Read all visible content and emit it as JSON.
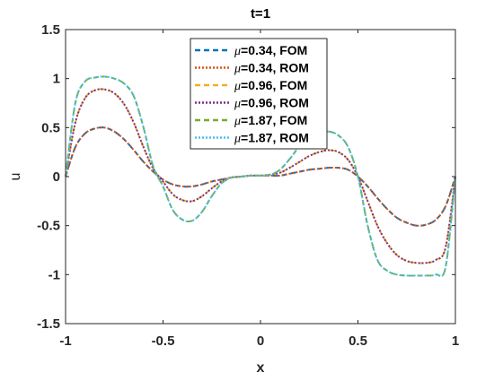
{
  "chart_data": {
    "type": "line",
    "title": "t=1",
    "xlabel": "x",
    "ylabel": "u",
    "xlim": [
      -1,
      1
    ],
    "ylim": [
      -1.5,
      1.5
    ],
    "xticks": [
      -1,
      -0.5,
      0,
      0.5,
      1
    ],
    "xtick_labels": [
      "-1",
      "-0.5",
      "0",
      "0.5",
      "1"
    ],
    "yticks": [
      -1.5,
      -1,
      -0.5,
      0,
      0.5,
      1,
      1.5
    ],
    "ytick_labels": [
      "-1.5",
      "-1",
      "-0.5",
      "0",
      "0.5",
      "1",
      "1.5"
    ],
    "grid": false,
    "legend_position": "top-center",
    "series": [
      {
        "name": "μ=0.34, FOM",
        "legend_mu": "μ",
        "legend_rest": "=0.34, FOM",
        "color": "#0072BD",
        "dash": "6,4",
        "x": [
          -1,
          -0.95,
          -0.9,
          -0.85,
          -0.8,
          -0.75,
          -0.7,
          -0.65,
          -0.6,
          -0.55,
          -0.5,
          -0.45,
          -0.4,
          -0.35,
          -0.3,
          -0.25,
          -0.2,
          -0.15,
          -0.1,
          -0.05,
          0,
          0.05,
          0.1,
          0.15,
          0.2,
          0.25,
          0.3,
          0.35,
          0.4,
          0.45,
          0.5,
          0.55,
          0.6,
          0.65,
          0.7,
          0.75,
          0.8,
          0.85,
          0.9,
          0.95,
          1
        ],
        "y": [
          0,
          0.3,
          0.44,
          0.49,
          0.5,
          0.46,
          0.38,
          0.27,
          0.15,
          0.05,
          -0.03,
          -0.08,
          -0.1,
          -0.1,
          -0.08,
          -0.05,
          -0.03,
          -0.01,
          0,
          0.01,
          0.01,
          0.01,
          0.01,
          0.03,
          0.05,
          0.07,
          0.08,
          0.09,
          0.09,
          0.07,
          0,
          -0.1,
          -0.22,
          -0.33,
          -0.42,
          -0.47,
          -0.5,
          -0.49,
          -0.44,
          -0.3,
          0
        ]
      },
      {
        "name": "μ=0.34, ROM",
        "legend_mu": "μ",
        "legend_rest": "=0.34, ROM",
        "color": "#D95319",
        "dash": "2,2",
        "x": [
          -1,
          -0.95,
          -0.9,
          -0.85,
          -0.8,
          -0.75,
          -0.7,
          -0.65,
          -0.6,
          -0.55,
          -0.5,
          -0.45,
          -0.4,
          -0.35,
          -0.3,
          -0.25,
          -0.2,
          -0.15,
          -0.1,
          -0.05,
          0,
          0.05,
          0.1,
          0.15,
          0.2,
          0.25,
          0.3,
          0.35,
          0.4,
          0.45,
          0.5,
          0.55,
          0.6,
          0.65,
          0.7,
          0.75,
          0.8,
          0.85,
          0.9,
          0.95,
          1
        ],
        "y": [
          0,
          0.3,
          0.44,
          0.49,
          0.5,
          0.46,
          0.38,
          0.27,
          0.15,
          0.05,
          -0.03,
          -0.08,
          -0.1,
          -0.1,
          -0.08,
          -0.05,
          -0.03,
          -0.01,
          0,
          0.01,
          0.01,
          0.01,
          0.01,
          0.03,
          0.05,
          0.07,
          0.08,
          0.09,
          0.09,
          0.07,
          0,
          -0.1,
          -0.22,
          -0.33,
          -0.42,
          -0.47,
          -0.5,
          -0.49,
          -0.44,
          -0.3,
          0
        ]
      },
      {
        "name": "μ=0.96, FOM",
        "legend_mu": "μ",
        "legend_rest": "=0.96, FOM",
        "color": "#EDB120",
        "dash": "6,4",
        "x": [
          -1,
          -0.95,
          -0.9,
          -0.85,
          -0.8,
          -0.75,
          -0.7,
          -0.65,
          -0.6,
          -0.55,
          -0.5,
          -0.45,
          -0.4,
          -0.35,
          -0.3,
          -0.25,
          -0.2,
          -0.15,
          -0.1,
          -0.05,
          0,
          0.05,
          0.1,
          0.15,
          0.2,
          0.25,
          0.3,
          0.35,
          0.4,
          0.45,
          0.5,
          0.55,
          0.6,
          0.65,
          0.7,
          0.75,
          0.8,
          0.85,
          0.9,
          0.95,
          1
        ],
        "y": [
          0,
          0.55,
          0.8,
          0.88,
          0.89,
          0.85,
          0.74,
          0.55,
          0.3,
          0.08,
          -0.05,
          -0.18,
          -0.24,
          -0.25,
          -0.2,
          -0.12,
          -0.05,
          -0.01,
          0,
          0.01,
          0.01,
          0.02,
          0.04,
          0.09,
          0.15,
          0.21,
          0.25,
          0.27,
          0.25,
          0.17,
          0,
          -0.25,
          -0.5,
          -0.68,
          -0.8,
          -0.86,
          -0.88,
          -0.88,
          -0.85,
          -0.72,
          0
        ]
      },
      {
        "name": "μ=0.96, ROM",
        "legend_mu": "μ",
        "legend_rest": "=0.96, ROM",
        "color": "#7E2F8E",
        "dash": "2,2",
        "x": [
          -1,
          -0.95,
          -0.9,
          -0.85,
          -0.8,
          -0.75,
          -0.7,
          -0.65,
          -0.6,
          -0.55,
          -0.5,
          -0.45,
          -0.4,
          -0.35,
          -0.3,
          -0.25,
          -0.2,
          -0.15,
          -0.1,
          -0.05,
          0,
          0.05,
          0.1,
          0.15,
          0.2,
          0.25,
          0.3,
          0.35,
          0.4,
          0.45,
          0.5,
          0.55,
          0.6,
          0.65,
          0.7,
          0.75,
          0.8,
          0.85,
          0.9,
          0.95,
          1
        ],
        "y": [
          0,
          0.55,
          0.8,
          0.88,
          0.89,
          0.85,
          0.74,
          0.55,
          0.3,
          0.08,
          -0.05,
          -0.18,
          -0.24,
          -0.25,
          -0.2,
          -0.12,
          -0.05,
          -0.01,
          0,
          0.01,
          0.01,
          0.02,
          0.04,
          0.09,
          0.15,
          0.21,
          0.25,
          0.27,
          0.25,
          0.17,
          0,
          -0.25,
          -0.5,
          -0.68,
          -0.8,
          -0.86,
          -0.88,
          -0.88,
          -0.85,
          -0.72,
          0
        ]
      },
      {
        "name": "μ=1.87, FOM",
        "legend_mu": "μ",
        "legend_rest": "=1.87, FOM",
        "color": "#77AC30",
        "dash": "6,4",
        "x": [
          -1,
          -0.95,
          -0.9,
          -0.85,
          -0.8,
          -0.75,
          -0.7,
          -0.65,
          -0.6,
          -0.55,
          -0.5,
          -0.45,
          -0.4,
          -0.35,
          -0.3,
          -0.25,
          -0.2,
          -0.15,
          -0.1,
          -0.05,
          0,
          0.05,
          0.1,
          0.15,
          0.2,
          0.25,
          0.3,
          0.35,
          0.4,
          0.45,
          0.5,
          0.55,
          0.6,
          0.65,
          0.7,
          0.75,
          0.8,
          0.85,
          0.9,
          0.95,
          1
        ],
        "y": [
          0,
          0.75,
          0.97,
          1.01,
          1.02,
          1.0,
          0.95,
          0.82,
          0.5,
          0.1,
          -0.1,
          -0.34,
          -0.44,
          -0.45,
          -0.36,
          -0.2,
          -0.07,
          -0.01,
          0,
          0.01,
          0.01,
          0.02,
          0.07,
          0.18,
          0.31,
          0.41,
          0.45,
          0.46,
          0.42,
          0.3,
          0,
          -0.5,
          -0.85,
          -0.96,
          -1.0,
          -1.01,
          -1.01,
          -1.01,
          -1.0,
          -0.92,
          0
        ]
      },
      {
        "name": "μ=1.87, ROM",
        "legend_mu": "μ",
        "legend_rest": "=1.87, ROM",
        "color": "#4DBEEE",
        "dash": "2,2",
        "x": [
          -1,
          -0.95,
          -0.9,
          -0.85,
          -0.8,
          -0.75,
          -0.7,
          -0.65,
          -0.6,
          -0.55,
          -0.5,
          -0.45,
          -0.4,
          -0.35,
          -0.3,
          -0.25,
          -0.2,
          -0.15,
          -0.1,
          -0.05,
          0,
          0.05,
          0.1,
          0.15,
          0.2,
          0.25,
          0.3,
          0.35,
          0.4,
          0.45,
          0.5,
          0.55,
          0.6,
          0.65,
          0.7,
          0.75,
          0.8,
          0.85,
          0.9,
          0.95,
          1
        ],
        "y": [
          0,
          0.75,
          0.97,
          1.01,
          1.02,
          1.0,
          0.95,
          0.82,
          0.5,
          0.1,
          -0.1,
          -0.34,
          -0.44,
          -0.45,
          -0.36,
          -0.2,
          -0.07,
          -0.01,
          0,
          0.01,
          0.01,
          0.02,
          0.07,
          0.18,
          0.31,
          0.41,
          0.45,
          0.46,
          0.42,
          0.3,
          0,
          -0.5,
          -0.85,
          -0.96,
          -1.0,
          -1.01,
          -1.01,
          -1.01,
          -1.0,
          -0.92,
          0
        ]
      }
    ]
  }
}
